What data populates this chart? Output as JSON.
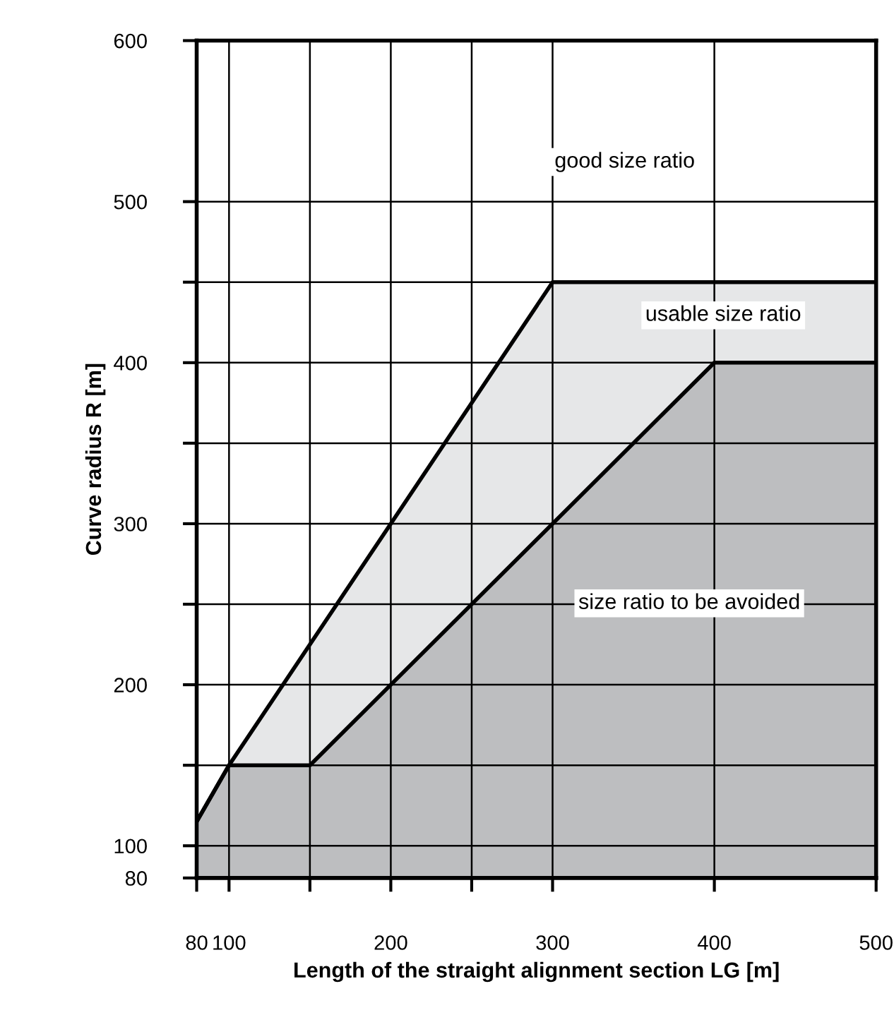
{
  "chart_data": {
    "type": "area",
    "xlabel": "Length of the straight alignment section LG [m]",
    "ylabel": "Curve radius R [m]",
    "series": [
      {
        "x": [
          80,
          100,
          300,
          500
        ],
        "values": [
          115,
          150,
          450,
          450
        ],
        "color": "#e6e7e8"
      },
      {
        "x": [
          80,
          100,
          150,
          400,
          500
        ],
        "values": [
          115,
          150,
          150,
          400,
          400
        ],
        "color": "#bdbec0"
      }
    ],
    "annotations": [
      "good size ratio",
      "usable size ratio",
      "size ratio to be avoided"
    ],
    "xlim": [
      80,
      500
    ],
    "ylim": [
      80,
      600
    ],
    "xticks": [
      80,
      100,
      {
        "value": 150,
        "label": null
      },
      200,
      {
        "value": 250,
        "label": null
      },
      300,
      400,
      500
    ],
    "yticks": [
      80,
      100,
      {
        "value": 150,
        "label": null
      },
      200,
      {
        "value": 250,
        "label": null
      },
      300,
      {
        "value": 350,
        "label": null
      },
      400,
      {
        "value": 450,
        "label": null
      },
      500,
      600
    ],
    "grid": true,
    "legend": false
  }
}
